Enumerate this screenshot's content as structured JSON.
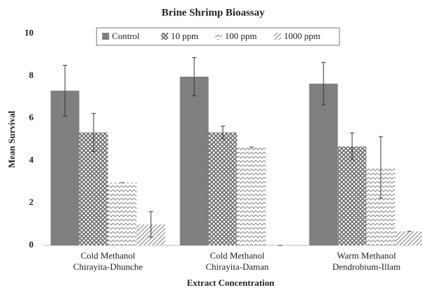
{
  "chart_data": {
    "type": "bar",
    "title": "Brine Shrimp Bioassay",
    "x_label": "Extract Concentration",
    "y_label": "Mean Survival",
    "categories": [
      [
        "Cold Methanol",
        "Chirayita-Dhunche"
      ],
      [
        "Cold Methanol",
        "Chirayita-Daman"
      ],
      [
        "Warm Methanol",
        "Dendrobium-Illam"
      ]
    ],
    "series": [
      {
        "name": "Control",
        "color": "#7f7f7f",
        "pattern": "solid",
        "values": [
          7.3,
          7.96,
          7.63
        ],
        "errors": [
          1.2,
          0.9,
          1.0
        ]
      },
      {
        "name": "10 ppm",
        "color": "#6b6b6b",
        "pattern": "cross",
        "values": [
          5.33,
          5.33,
          4.67
        ],
        "errors": [
          0.9,
          0.3,
          0.63
        ]
      },
      {
        "name": "100 ppm",
        "color": "#8a8a8a",
        "pattern": "zigzag",
        "values": [
          2.96,
          4.64,
          3.68
        ],
        "errors": [
          0,
          0,
          1.45
        ]
      },
      {
        "name": "1000 ppm",
        "color": "#9a9a9a",
        "pattern": "diagonal",
        "values": [
          0.99,
          0,
          0.66
        ],
        "errors": [
          0.6,
          0,
          0
        ]
      }
    ],
    "ylim": [
      0,
      10
    ],
    "yticks": [
      0,
      2,
      4,
      6,
      8,
      10
    ],
    "grid": false,
    "legend": "top"
  }
}
